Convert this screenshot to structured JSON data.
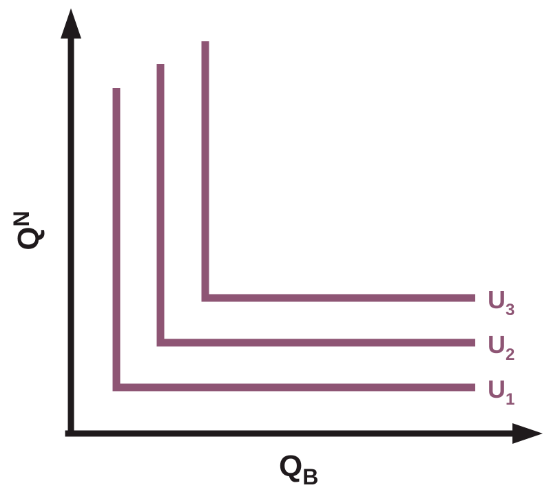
{
  "colors": {
    "axis": "#1f1a1c",
    "curve": "#8e5574",
    "background": "#ffffff"
  },
  "axes": {
    "y_label_main": "Q",
    "y_label_sub": "N",
    "x_label_main": "Q",
    "x_label_sub": "B"
  },
  "curves": [
    {
      "label_main": "U",
      "label_sub": "1"
    },
    {
      "label_main": "U",
      "label_sub": "2"
    },
    {
      "label_main": "U",
      "label_sub": "3"
    }
  ]
}
